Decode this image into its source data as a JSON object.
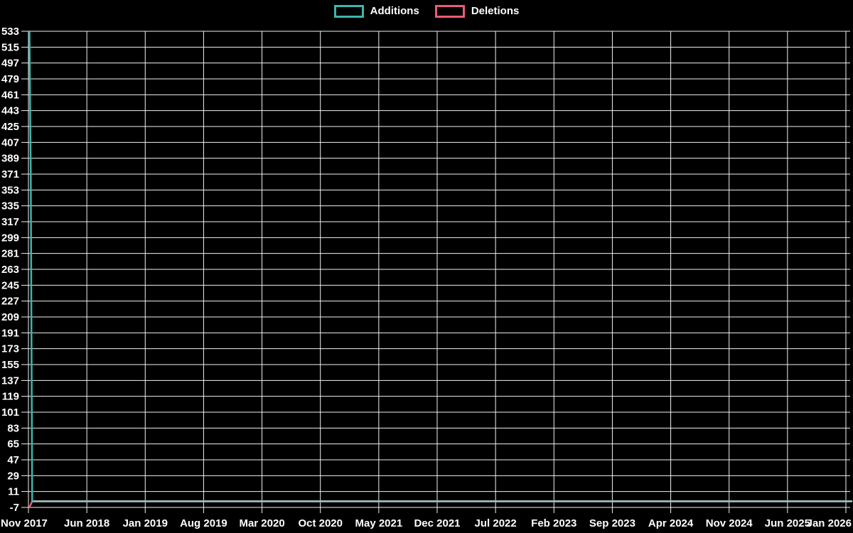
{
  "chart_data": {
    "type": "line",
    "title": "",
    "background_color": "#000000",
    "grid_color": "#f2f2f2",
    "text_color": "#ffffff",
    "legend_position": "top-center",
    "grid": true,
    "legend": [
      {
        "label": "Additions",
        "color": "#3bb6ad"
      },
      {
        "label": "Deletions",
        "color": "#e95c74"
      }
    ],
    "x_ticks": [
      "Nov 2017",
      "Jun 2018",
      "Jan 2019",
      "Aug 2019",
      "Mar 2020",
      "Oct 2020",
      "May 2021",
      "Dec 2021",
      "Jul 2022",
      "Feb 2023",
      "Sep 2023",
      "Apr 2024",
      "Nov 2024",
      "Jun 2025",
      "Jan 2026"
    ],
    "x_tick_interval_months": 7,
    "x_domain_months": [
      0,
      98
    ],
    "y_ticks": [
      533,
      515,
      497,
      479,
      461,
      443,
      425,
      407,
      389,
      371,
      353,
      335,
      317,
      299,
      281,
      263,
      245,
      227,
      209,
      191,
      173,
      155,
      137,
      119,
      101,
      83,
      65,
      47,
      29,
      11,
      -7
    ],
    "ylim": [
      -7,
      533
    ],
    "y_tick_step": 18,
    "series": [
      {
        "name": "Deletions",
        "color": "#e95c74",
        "points": [
          [
            0.12,
            -7
          ],
          [
            0.45,
            0
          ],
          [
            98.7,
            0
          ]
        ]
      },
      {
        "name": "Additions",
        "color": "#3bb6ad",
        "points": [
          [
            0.12,
            533
          ],
          [
            0.28,
            371
          ],
          [
            0.45,
            0
          ],
          [
            98.7,
            0
          ]
        ]
      }
    ],
    "zero_overlap_line": {
      "color": "#a6bdc7",
      "y": 0,
      "x_from": 0.55,
      "x_to": 98.7
    }
  }
}
